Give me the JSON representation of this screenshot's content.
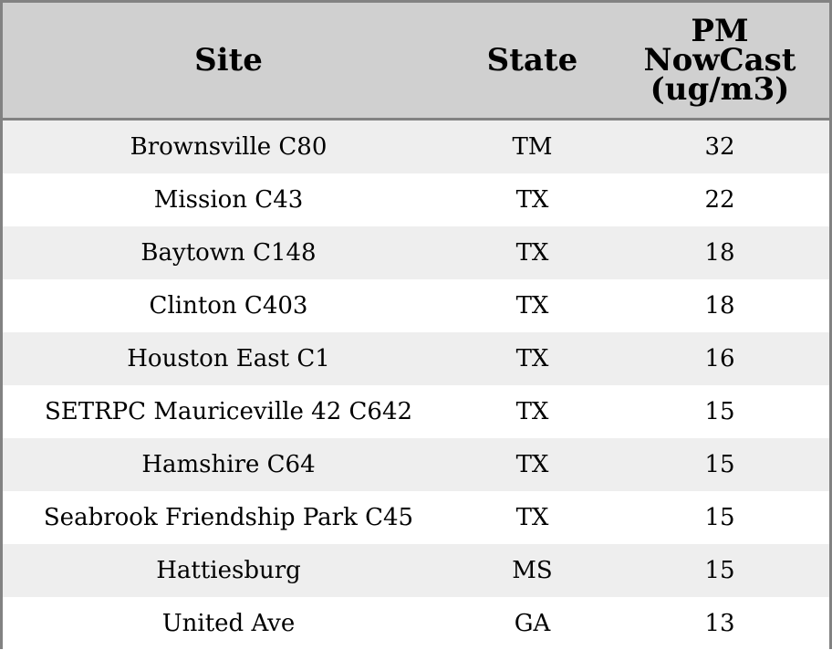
{
  "chart_data": {
    "type": "table",
    "columns": [
      "Site",
      "State",
      "PM NowCast (ug/m3)"
    ],
    "header_lines": {
      "site": [
        "Site"
      ],
      "state": [
        "State"
      ],
      "pm": [
        "PM",
        "NowCast",
        "(ug/m3)"
      ]
    },
    "rows": [
      {
        "site": "Brownsville C80",
        "state": "TM",
        "pm": 32
      },
      {
        "site": "Mission C43",
        "state": "TX",
        "pm": 22
      },
      {
        "site": "Baytown C148",
        "state": "TX",
        "pm": 18
      },
      {
        "site": "Clinton C403",
        "state": "TX",
        "pm": 18
      },
      {
        "site": "Houston East C1",
        "state": "TX",
        "pm": 16
      },
      {
        "site": "SETRPC Mauriceville 42 C642",
        "state": "TX",
        "pm": 15
      },
      {
        "site": "Hamshire C64",
        "state": "TX",
        "pm": 15
      },
      {
        "site": "Seabrook Friendship Park C45",
        "state": "TX",
        "pm": 15
      },
      {
        "site": "Hattiesburg",
        "state": "MS",
        "pm": 15
      },
      {
        "site": "United Ave",
        "state": "GA",
        "pm": 13
      }
    ]
  },
  "colors": {
    "header_background": "#d0d0d0",
    "row_shaded": "#eeeeee",
    "row_plain": "#ffffff",
    "border": "#828282"
  }
}
